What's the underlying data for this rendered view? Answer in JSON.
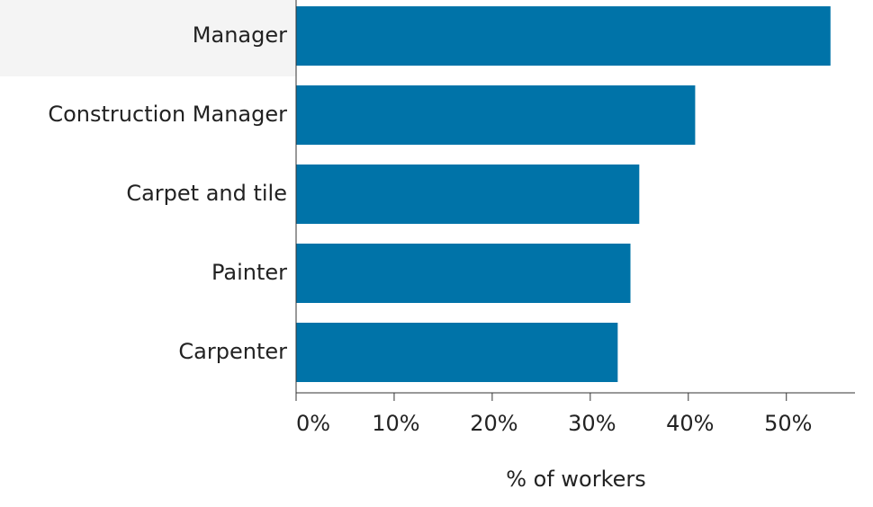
{
  "chart_data": {
    "type": "bar",
    "orientation": "horizontal",
    "categories": [
      "Manager",
      "Construction Manager",
      "Carpet and tile",
      "Painter",
      "Carpenter"
    ],
    "values": [
      54.5,
      40.7,
      35.0,
      34.1,
      32.8
    ],
    "color": "#0073a8",
    "xlabel": "% of workers",
    "xlim": [
      0,
      57
    ],
    "xticks": [
      {
        "value": 0,
        "label": "0%"
      },
      {
        "value": 10,
        "label": "10%"
      },
      {
        "value": 20,
        "label": "20%"
      },
      {
        "value": 30,
        "label": "30%"
      },
      {
        "value": 40,
        "label": "40%"
      },
      {
        "value": 50,
        "label": "50%"
      }
    ],
    "grid": false
  }
}
